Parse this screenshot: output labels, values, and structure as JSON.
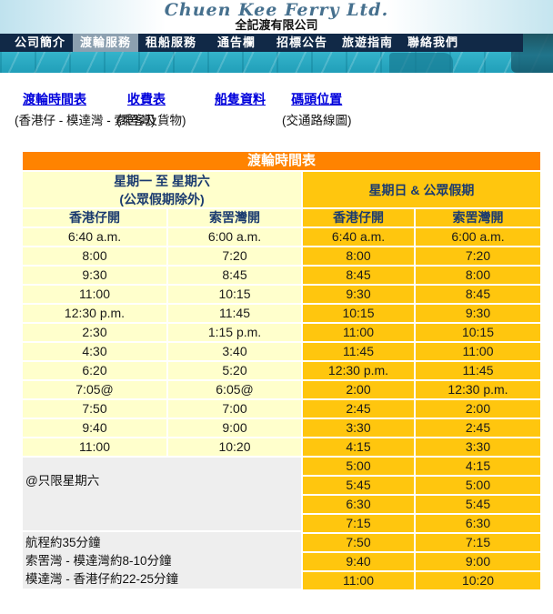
{
  "masthead": {
    "company_en": "Chuen Kee Ferry  Ltd.",
    "company_zh": "全記渡有限公司"
  },
  "nav": {
    "items": [
      {
        "label": "公司簡介",
        "active": false
      },
      {
        "label": "渡輪服務",
        "active": true
      },
      {
        "label": "租船服務",
        "active": false
      },
      {
        "label": "通告欄",
        "active": false
      },
      {
        "label": "招標公告",
        "active": false
      },
      {
        "label": "旅遊指南",
        "active": false
      },
      {
        "label": "聯絡我們",
        "active": false
      }
    ]
  },
  "quicklinks": {
    "items": [
      {
        "label": "渡輪時間表",
        "sub": "(香港仔 - 模達灣 - 索罟灣)"
      },
      {
        "label": "收費表",
        "sub": "(乘客及貨物)"
      },
      {
        "label": "船隻資料",
        "sub": ""
      },
      {
        "label": "碼頭位置",
        "sub": "(交通路線圖)"
      }
    ]
  },
  "timetable": {
    "title": "渡輪時間表",
    "weekday": {
      "header_line1": "星期一 至 星期六",
      "header_line2": "(公眾假期除外)",
      "col1": "香港仔開",
      "col2": "索罟灣開",
      "rows": [
        [
          "6:40 a.m.",
          "6:00 a.m."
        ],
        [
          "8:00",
          "7:20"
        ],
        [
          "9:30",
          "8:45"
        ],
        [
          "11:00",
          "10:15"
        ],
        [
          "12:30 p.m.",
          "11:45"
        ],
        [
          "2:30",
          "1:15 p.m."
        ],
        [
          "4:30",
          "3:40"
        ],
        [
          "6:20",
          "5:20"
        ],
        [
          "7:05@",
          "6:05@"
        ],
        [
          "7:50",
          "7:00"
        ],
        [
          "9:40",
          "9:00"
        ],
        [
          "11:00",
          "10:20"
        ]
      ],
      "note1": "@只限星期六",
      "note2_lines": [
        "航程約35分鐘",
        "索罟灣 - 模達灣約8-10分鐘",
        "模達灣 - 香港仔約22-25分鐘"
      ]
    },
    "holiday": {
      "header": "星期日 & 公眾假期",
      "col1": "香港仔開",
      "col2": "索罟灣開",
      "rows": [
        [
          "6:40 a.m.",
          "6:00 a.m."
        ],
        [
          "8:00",
          "7:20"
        ],
        [
          "8:45",
          "8:00"
        ],
        [
          "9:30",
          "8:45"
        ],
        [
          "10:15",
          "9:30"
        ],
        [
          "11:00",
          "10:15"
        ],
        [
          "11:45",
          "11:00"
        ],
        [
          "12:30 p.m.",
          "11:45"
        ],
        [
          "2:00",
          "12:30 p.m."
        ],
        [
          "2:45",
          "2:00"
        ],
        [
          "3:30",
          "2:45"
        ],
        [
          "4:15",
          "3:30"
        ],
        [
          "5:00",
          "4:15"
        ],
        [
          "5:45",
          "5:00"
        ],
        [
          "6:30",
          "5:45"
        ],
        [
          "7:15",
          "6:30"
        ],
        [
          "7:50",
          "7:15"
        ],
        [
          "9:40",
          "9:00"
        ],
        [
          "11:00",
          "10:20"
        ]
      ]
    }
  },
  "colors": {
    "accent_orange": "#FF8300",
    "gold": "#FFC60E",
    "pale_yellow": "#FFFFCC",
    "header_navy": "#1B3B6F",
    "nav_navy": "#112947",
    "nav_active_gray": "#8CA0B0",
    "link_blue": "#0000DC",
    "note_gray": "#EEEEEE",
    "banner_teal": "#35B4CB"
  }
}
